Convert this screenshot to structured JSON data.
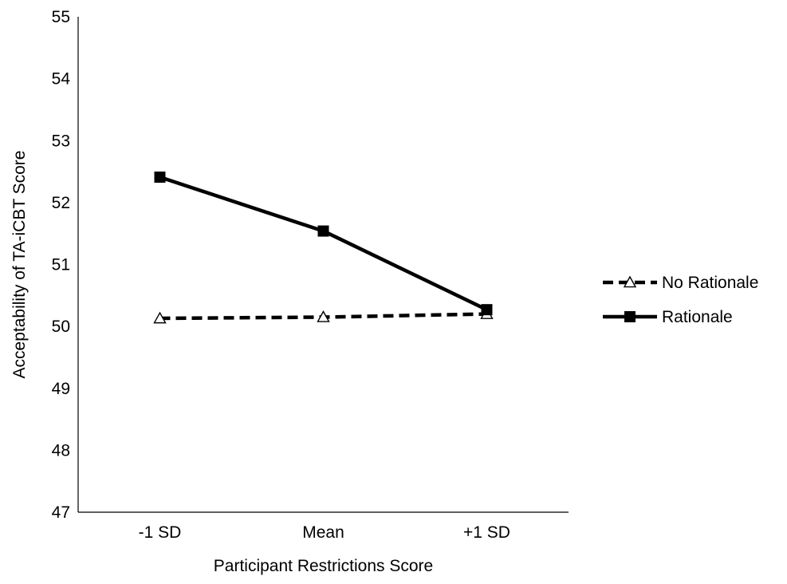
{
  "chart_data": {
    "type": "line",
    "title": "",
    "xlabel": "Participant Restrictions Score",
    "ylabel": "Acceptability of TA-iCBT Score",
    "categories": [
      "-1 SD",
      "Mean",
      "+1 SD"
    ],
    "ylim": [
      47,
      55
    ],
    "yticks": [
      47,
      48,
      49,
      50,
      51,
      52,
      53,
      54,
      55
    ],
    "grid": false,
    "legend_position": "right",
    "series": [
      {
        "name": "No Rationale",
        "values": [
          50.13,
          50.15,
          50.2
        ],
        "line_style": "dashed",
        "marker": "triangle-open",
        "color": "#000000"
      },
      {
        "name": "Rationale",
        "values": [
          52.41,
          51.54,
          50.27
        ],
        "line_style": "solid",
        "marker": "square-filled",
        "color": "#000000"
      }
    ]
  }
}
